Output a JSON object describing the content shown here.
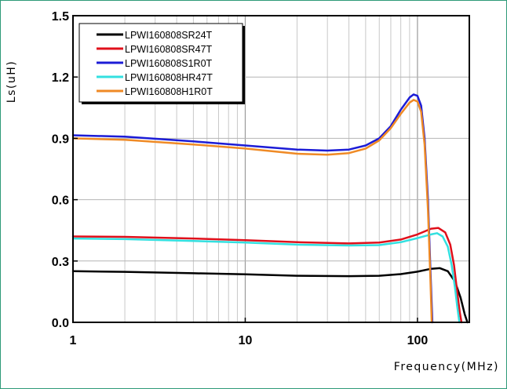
{
  "chart_data": {
    "type": "line",
    "xlabel": "Frequency(MHz)",
    "ylabel": "Ls(uH)",
    "xscale": "log",
    "xlim": [
      1,
      200
    ],
    "ylim": [
      0.0,
      1.5
    ],
    "x_ticks": [
      1,
      10,
      100
    ],
    "x_tick_labels": [
      "1",
      "10",
      "100"
    ],
    "y_ticks": [
      0.0,
      0.3,
      0.6,
      0.9,
      1.2,
      1.5
    ],
    "y_tick_labels": [
      "0.0",
      "0.3",
      "0.6",
      "0.9",
      "1.2",
      "1.5"
    ],
    "grid": true,
    "legend_position": "top-left",
    "series": [
      {
        "name": "LPWI160808SR24T",
        "color": "#000000",
        "points": [
          [
            1,
            0.25
          ],
          [
            2,
            0.247
          ],
          [
            5,
            0.24
          ],
          [
            10,
            0.235
          ],
          [
            20,
            0.228
          ],
          [
            40,
            0.226
          ],
          [
            60,
            0.228
          ],
          [
            80,
            0.236
          ],
          [
            100,
            0.248
          ],
          [
            120,
            0.262
          ],
          [
            135,
            0.265
          ],
          [
            150,
            0.25
          ],
          [
            165,
            0.2
          ],
          [
            178,
            0.12
          ],
          [
            188,
            0.04
          ],
          [
            195,
            0.0
          ]
        ]
      },
      {
        "name": "LPWI160808SR47T",
        "color": "#e0101b",
        "points": [
          [
            1,
            0.42
          ],
          [
            2,
            0.418
          ],
          [
            5,
            0.41
          ],
          [
            10,
            0.402
          ],
          [
            20,
            0.392
          ],
          [
            40,
            0.386
          ],
          [
            60,
            0.39
          ],
          [
            80,
            0.405
          ],
          [
            100,
            0.43
          ],
          [
            120,
            0.458
          ],
          [
            132,
            0.462
          ],
          [
            145,
            0.44
          ],
          [
            155,
            0.38
          ],
          [
            163,
            0.28
          ],
          [
            170,
            0.15
          ],
          [
            176,
            0.05
          ],
          [
            180,
            0.0
          ]
        ]
      },
      {
        "name": "LPWI160808S1R0T",
        "color": "#1c1cd6",
        "points": [
          [
            1,
            0.915
          ],
          [
            2,
            0.908
          ],
          [
            5,
            0.885
          ],
          [
            10,
            0.865
          ],
          [
            20,
            0.845
          ],
          [
            30,
            0.84
          ],
          [
            40,
            0.845
          ],
          [
            50,
            0.865
          ],
          [
            60,
            0.9
          ],
          [
            70,
            0.96
          ],
          [
            80,
            1.04
          ],
          [
            90,
            1.1
          ],
          [
            95,
            1.115
          ],
          [
            100,
            1.108
          ],
          [
            105,
            1.06
          ],
          [
            110,
            0.9
          ],
          [
            115,
            0.6
          ],
          [
            119,
            0.25
          ],
          [
            122,
            0.0
          ]
        ]
      },
      {
        "name": "LPWI160808HR47T",
        "color": "#33e0e0",
        "points": [
          [
            1,
            0.41
          ],
          [
            2,
            0.407
          ],
          [
            5,
            0.398
          ],
          [
            10,
            0.39
          ],
          [
            20,
            0.38
          ],
          [
            40,
            0.376
          ],
          [
            60,
            0.378
          ],
          [
            80,
            0.392
          ],
          [
            100,
            0.412
          ],
          [
            120,
            0.43
          ],
          [
            130,
            0.436
          ],
          [
            140,
            0.42
          ],
          [
            150,
            0.37
          ],
          [
            158,
            0.28
          ],
          [
            165,
            0.17
          ],
          [
            170,
            0.08
          ],
          [
            175,
            0.0
          ]
        ]
      },
      {
        "name": "LPWI160808H1R0T",
        "color": "#ef8a25",
        "points": [
          [
            1,
            0.9
          ],
          [
            2,
            0.893
          ],
          [
            5,
            0.87
          ],
          [
            10,
            0.85
          ],
          [
            20,
            0.825
          ],
          [
            30,
            0.82
          ],
          [
            40,
            0.828
          ],
          [
            50,
            0.85
          ],
          [
            60,
            0.89
          ],
          [
            70,
            0.95
          ],
          [
            80,
            1.02
          ],
          [
            90,
            1.075
          ],
          [
            95,
            1.088
          ],
          [
            100,
            1.08
          ],
          [
            105,
            1.03
          ],
          [
            110,
            0.87
          ],
          [
            115,
            0.55
          ],
          [
            119,
            0.2
          ],
          [
            121,
            0.0
          ]
        ]
      }
    ]
  }
}
